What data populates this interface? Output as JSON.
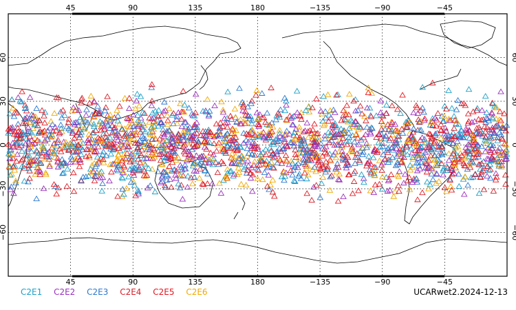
{
  "map": {
    "type": "world-map-scatter",
    "projection": "cylindrical-equidistant",
    "central_longitude": 180,
    "background": "#ffffff",
    "marker": "open-triangle",
    "lat_extent": [
      -90,
      90
    ],
    "grid": "dotted",
    "top_ticks": [
      "45",
      "90",
      "135",
      "180",
      "−135",
      "−90",
      "−45"
    ],
    "bottom_ticks": [
      "45",
      "90",
      "135",
      "180",
      "−135",
      "−90",
      "−45"
    ],
    "left_ticks": [
      "60",
      "30",
      "0",
      "−30",
      "−60"
    ],
    "right_ticks": [
      "60",
      "30",
      "0",
      "−30",
      "−60"
    ],
    "point_lat_range": [
      -45,
      45
    ]
  },
  "legend": [
    {
      "label": "C2E1",
      "color": "#1aa0c8"
    },
    {
      "label": "C2E2",
      "color": "#9b2fbe"
    },
    {
      "label": "C2E3",
      "color": "#2a78d0"
    },
    {
      "label": "C2E4",
      "color": "#d8202a"
    },
    {
      "label": "C2E5",
      "color": "#e8141c"
    },
    {
      "label": "C2E6",
      "color": "#f2a900"
    }
  ],
  "footer": "UCARwet2.2024-12-13"
}
